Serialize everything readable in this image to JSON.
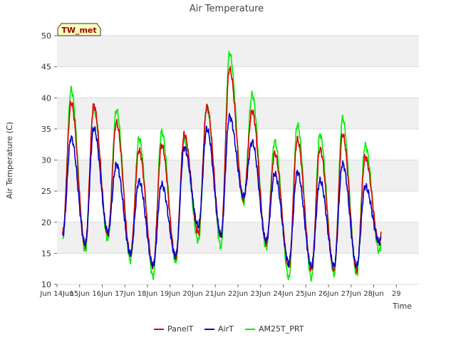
{
  "chart_data": {
    "type": "line",
    "title": "Air Temperature",
    "xlabel": "Time",
    "ylabel": "Air Temperature (C)",
    "site_badge": "TW_met",
    "ylim": [
      10,
      50
    ],
    "yticks": [
      10,
      15,
      20,
      25,
      30,
      35,
      40,
      45,
      50
    ],
    "xlim": [
      "2024-06-13",
      "2024-06-29"
    ],
    "xticks": [
      {
        "date": "2024-06-13",
        "label": "Jun 14Jun"
      },
      {
        "date": "2024-06-14",
        "label": "15Jun"
      },
      {
        "date": "2024-06-15",
        "label": "16Jun"
      },
      {
        "date": "2024-06-16",
        "label": "17Jun"
      },
      {
        "date": "2024-06-17",
        "label": "18Jun"
      },
      {
        "date": "2024-06-18",
        "label": "19Jun"
      },
      {
        "date": "2024-06-19",
        "label": "20Jun"
      },
      {
        "date": "2024-06-20",
        "label": "21Jun"
      },
      {
        "date": "2024-06-21",
        "label": "22Jun"
      },
      {
        "date": "2024-06-22",
        "label": "23Jun"
      },
      {
        "date": "2024-06-23",
        "label": "24Jun"
      },
      {
        "date": "2024-06-24",
        "label": "25Jun"
      },
      {
        "date": "2024-06-25",
        "label": "26Jun"
      },
      {
        "date": "2024-06-26",
        "label": "27Jun"
      },
      {
        "date": "2024-06-27",
        "label": "28Jun"
      },
      {
        "date": "2024-06-28",
        "label": "29"
      }
    ],
    "grid": true,
    "background_bands": true,
    "legend_position": "bottom",
    "series": [
      {
        "name": "PanelT",
        "color": "#dd0000",
        "min": [
          18.3,
          16.3,
          18.1,
          14.8,
          12.9,
          14.4,
          18.3,
          17.7,
          23.7,
          16.7,
          12.9,
          12.4,
          12.4,
          12.4,
          16.7
        ],
        "max": [
          39.2,
          38.8,
          36.0,
          31.6,
          32.4,
          34.1,
          38.6,
          44.7,
          37.9,
          31.1,
          33.3,
          31.8,
          34.1,
          30.5
        ]
      },
      {
        "name": "AirT",
        "color": "#0000cc",
        "min": [
          17.9,
          16.5,
          18.4,
          15.0,
          13.0,
          14.6,
          19.4,
          18.0,
          24.2,
          17.0,
          13.5,
          12.9,
          13.0,
          13.0,
          16.8
        ],
        "max": [
          33.6,
          35.1,
          29.3,
          26.6,
          26.1,
          32.0,
          35.0,
          37.0,
          32.9,
          27.8,
          28.1,
          26.7,
          29.4,
          25.8
        ]
      },
      {
        "name": "AM25T_PRT",
        "color": "#00ee00",
        "min": [
          17.5,
          15.4,
          17.2,
          13.8,
          11.3,
          13.6,
          17.0,
          16.0,
          23.1,
          15.9,
          11.0,
          11.0,
          11.6,
          11.6,
          15.3
        ],
        "max": [
          41.3,
          38.2,
          38.0,
          33.5,
          34.6,
          33.3,
          38.6,
          47.2,
          40.6,
          33.0,
          35.7,
          34.1,
          36.7,
          32.4
        ]
      }
    ]
  }
}
